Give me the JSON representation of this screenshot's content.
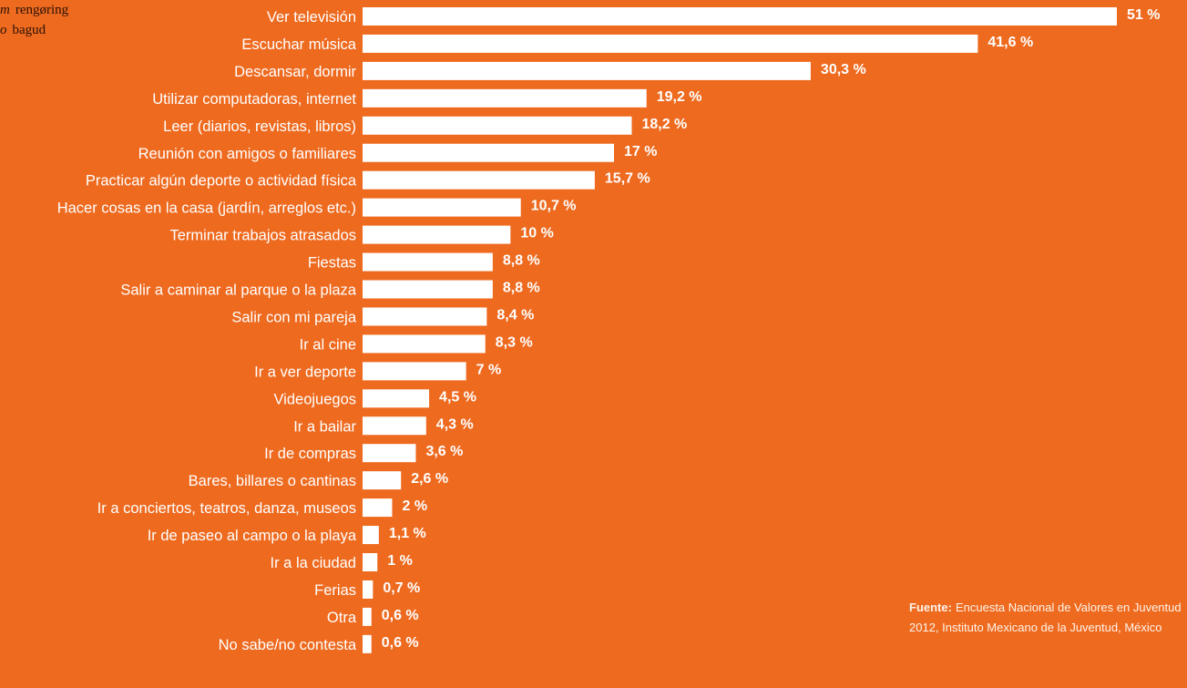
{
  "corner_text": [
    {
      "lead": "m",
      "text": "rengøring"
    },
    {
      "lead": "o",
      "text": "bagud"
    }
  ],
  "source": {
    "label": "Fuente:",
    "text": "Encuesta Nacional de Valores en Juventud 2012, Instituto Mexicano de la Juventud, México"
  },
  "colors": {
    "background": "#ee6a1f",
    "bar": "#ffffff",
    "text": "#ffffff"
  },
  "chart_data": {
    "type": "bar",
    "orientation": "horizontal",
    "categories": [
      "Ver televisión",
      "Escuchar música",
      "Descansar, dormir",
      "Utilizar computadoras, internet",
      "Leer (diarios, revistas, libros)",
      "Reunión con amigos o familiares",
      "Practicar algún deporte o actividad física",
      "Hacer cosas en la casa (jardín, arreglos etc.)",
      "Terminar trabajos atrasados",
      "Fiestas",
      "Salir a caminar al parque o la plaza",
      "Salir con mi pareja",
      "Ir al cine",
      "Ir a ver deporte",
      "Videojuegos",
      "Ir a bailar",
      "Ir de compras",
      "Bares, billares o cantinas",
      "Ir a conciertos, teatros, danza, museos",
      "Ir de paseo al campo o la playa",
      "Ir a la ciudad",
      "Ferias",
      "Otra",
      "No sabe/no contesta"
    ],
    "values": [
      51,
      41.6,
      30.3,
      19.2,
      18.2,
      17,
      15.7,
      10.7,
      10,
      8.8,
      8.8,
      8.4,
      8.3,
      7,
      4.5,
      4.3,
      3.6,
      2.6,
      2,
      1.1,
      1,
      0.7,
      0.6,
      0.6
    ],
    "value_labels": [
      "51 %",
      "41,6 %",
      "30,3 %",
      "19,2 %",
      "18,2 %",
      "17 %",
      "15,7 %",
      "10,7 %",
      "10 %",
      "8,8 %",
      "8,8 %",
      "8,4 %",
      "8,3 %",
      "7 %",
      "4,5 %",
      "4,3 %",
      "3,6 %",
      "2,6 %",
      "2 %",
      "1,1 %",
      "1 %",
      "0,7 %",
      "0,6 %",
      "0,6 %"
    ],
    "unit": "%",
    "xlim": [
      0,
      51
    ],
    "grid": false,
    "legend": false
  }
}
